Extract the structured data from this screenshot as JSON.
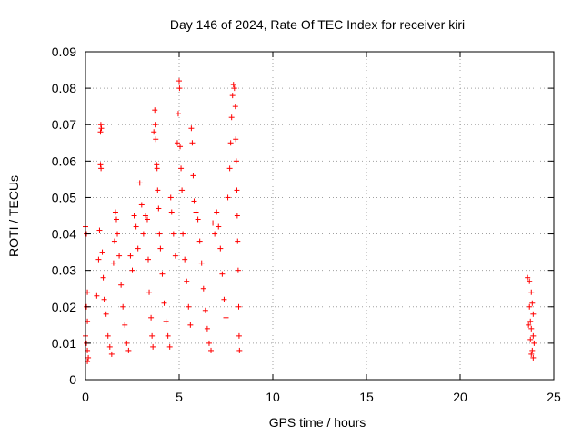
{
  "chart_data": {
    "type": "scatter",
    "title": "Day 146 of 2024, Rate Of TEC Index for receiver kiri",
    "xlabel": "GPS time / hours",
    "ylabel": "ROTI / TECUs",
    "xlim": [
      0,
      25
    ],
    "ylim": [
      0,
      0.09
    ],
    "xticks": [
      0,
      5,
      10,
      15,
      20,
      25
    ],
    "xtick_labels": [
      "0",
      "5",
      "10",
      "15",
      "20",
      "25"
    ],
    "yticks": [
      0,
      0.01,
      0.02,
      0.03,
      0.04,
      0.05,
      0.06,
      0.07,
      0.08,
      0.09
    ],
    "ytick_labels": [
      "0",
      "0.01",
      "0.02",
      "0.03",
      "0.04",
      "0.05",
      "0.06",
      "0.07",
      "0.08",
      "0.09"
    ],
    "grid": true,
    "marker": "+",
    "color": "#ff0000",
    "series": [
      {
        "name": "ROTI",
        "points": [
          [
            0.0,
            0.042
          ],
          [
            0.05,
            0.04
          ],
          [
            0.1,
            0.024
          ],
          [
            0.05,
            0.02
          ],
          [
            0.1,
            0.016
          ],
          [
            0.0,
            0.012
          ],
          [
            0.05,
            0.01
          ],
          [
            0.1,
            0.008
          ],
          [
            0.15,
            0.006
          ],
          [
            0.1,
            0.005
          ],
          [
            0.6,
            0.023
          ],
          [
            0.7,
            0.033
          ],
          [
            0.75,
            0.041
          ],
          [
            0.8,
            0.068
          ],
          [
            0.82,
            0.07
          ],
          [
            0.85,
            0.069
          ],
          [
            0.8,
            0.059
          ],
          [
            0.83,
            0.058
          ],
          [
            0.9,
            0.035
          ],
          [
            0.95,
            0.028
          ],
          [
            1.0,
            0.022
          ],
          [
            1.1,
            0.018
          ],
          [
            1.2,
            0.012
          ],
          [
            1.3,
            0.009
          ],
          [
            1.4,
            0.007
          ],
          [
            1.5,
            0.032
          ],
          [
            1.55,
            0.038
          ],
          [
            1.6,
            0.046
          ],
          [
            1.65,
            0.044
          ],
          [
            1.7,
            0.04
          ],
          [
            1.8,
            0.034
          ],
          [
            1.9,
            0.026
          ],
          [
            2.0,
            0.02
          ],
          [
            2.1,
            0.015
          ],
          [
            2.2,
            0.01
          ],
          [
            2.3,
            0.008
          ],
          [
            2.4,
            0.034
          ],
          [
            2.5,
            0.03
          ],
          [
            2.6,
            0.045
          ],
          [
            2.7,
            0.042
          ],
          [
            2.8,
            0.036
          ],
          [
            2.9,
            0.054
          ],
          [
            3.0,
            0.048
          ],
          [
            3.1,
            0.04
          ],
          [
            3.2,
            0.045
          ],
          [
            3.3,
            0.044
          ],
          [
            3.35,
            0.033
          ],
          [
            3.4,
            0.024
          ],
          [
            3.5,
            0.017
          ],
          [
            3.55,
            0.012
          ],
          [
            3.6,
            0.009
          ],
          [
            3.65,
            0.068
          ],
          [
            3.7,
            0.074
          ],
          [
            3.72,
            0.07
          ],
          [
            3.75,
            0.066
          ],
          [
            3.8,
            0.059
          ],
          [
            3.82,
            0.058
          ],
          [
            3.85,
            0.052
          ],
          [
            3.9,
            0.047
          ],
          [
            3.95,
            0.04
          ],
          [
            4.0,
            0.036
          ],
          [
            4.1,
            0.029
          ],
          [
            4.2,
            0.021
          ],
          [
            4.3,
            0.016
          ],
          [
            4.4,
            0.012
          ],
          [
            4.5,
            0.009
          ],
          [
            4.55,
            0.05
          ],
          [
            4.6,
            0.046
          ],
          [
            4.7,
            0.04
          ],
          [
            4.8,
            0.034
          ],
          [
            4.9,
            0.065
          ],
          [
            4.95,
            0.073
          ],
          [
            5.0,
            0.082
          ],
          [
            5.02,
            0.08
          ],
          [
            5.05,
            0.064
          ],
          [
            5.1,
            0.058
          ],
          [
            5.15,
            0.052
          ],
          [
            5.2,
            0.04
          ],
          [
            5.3,
            0.033
          ],
          [
            5.4,
            0.027
          ],
          [
            5.5,
            0.02
          ],
          [
            5.6,
            0.015
          ],
          [
            5.65,
            0.069
          ],
          [
            5.7,
            0.065
          ],
          [
            5.75,
            0.056
          ],
          [
            5.8,
            0.049
          ],
          [
            5.9,
            0.046
          ],
          [
            6.0,
            0.044
          ],
          [
            6.1,
            0.038
          ],
          [
            6.2,
            0.032
          ],
          [
            6.3,
            0.025
          ],
          [
            6.4,
            0.019
          ],
          [
            6.5,
            0.014
          ],
          [
            6.6,
            0.01
          ],
          [
            6.7,
            0.008
          ],
          [
            6.8,
            0.043
          ],
          [
            6.9,
            0.04
          ],
          [
            7.0,
            0.046
          ],
          [
            7.1,
            0.042
          ],
          [
            7.2,
            0.036
          ],
          [
            7.3,
            0.029
          ],
          [
            7.4,
            0.022
          ],
          [
            7.5,
            0.017
          ],
          [
            7.6,
            0.05
          ],
          [
            7.7,
            0.058
          ],
          [
            7.75,
            0.065
          ],
          [
            7.8,
            0.072
          ],
          [
            7.85,
            0.078
          ],
          [
            7.9,
            0.081
          ],
          [
            7.95,
            0.08
          ],
          [
            8.0,
            0.075
          ],
          [
            8.02,
            0.066
          ],
          [
            8.05,
            0.06
          ],
          [
            8.08,
            0.052
          ],
          [
            8.1,
            0.045
          ],
          [
            8.12,
            0.038
          ],
          [
            8.15,
            0.03
          ],
          [
            8.18,
            0.02
          ],
          [
            8.2,
            0.012
          ],
          [
            8.22,
            0.008
          ],
          [
            23.6,
            0.028
          ],
          [
            23.7,
            0.027
          ],
          [
            23.8,
            0.024
          ],
          [
            23.85,
            0.021
          ],
          [
            23.9,
            0.018
          ],
          [
            23.75,
            0.016
          ],
          [
            23.8,
            0.014
          ],
          [
            23.9,
            0.012
          ],
          [
            23.95,
            0.01
          ],
          [
            23.85,
            0.008
          ],
          [
            23.8,
            0.007
          ],
          [
            23.9,
            0.006
          ],
          [
            23.7,
            0.02
          ],
          [
            23.65,
            0.015
          ],
          [
            23.75,
            0.011
          ]
        ]
      }
    ]
  }
}
